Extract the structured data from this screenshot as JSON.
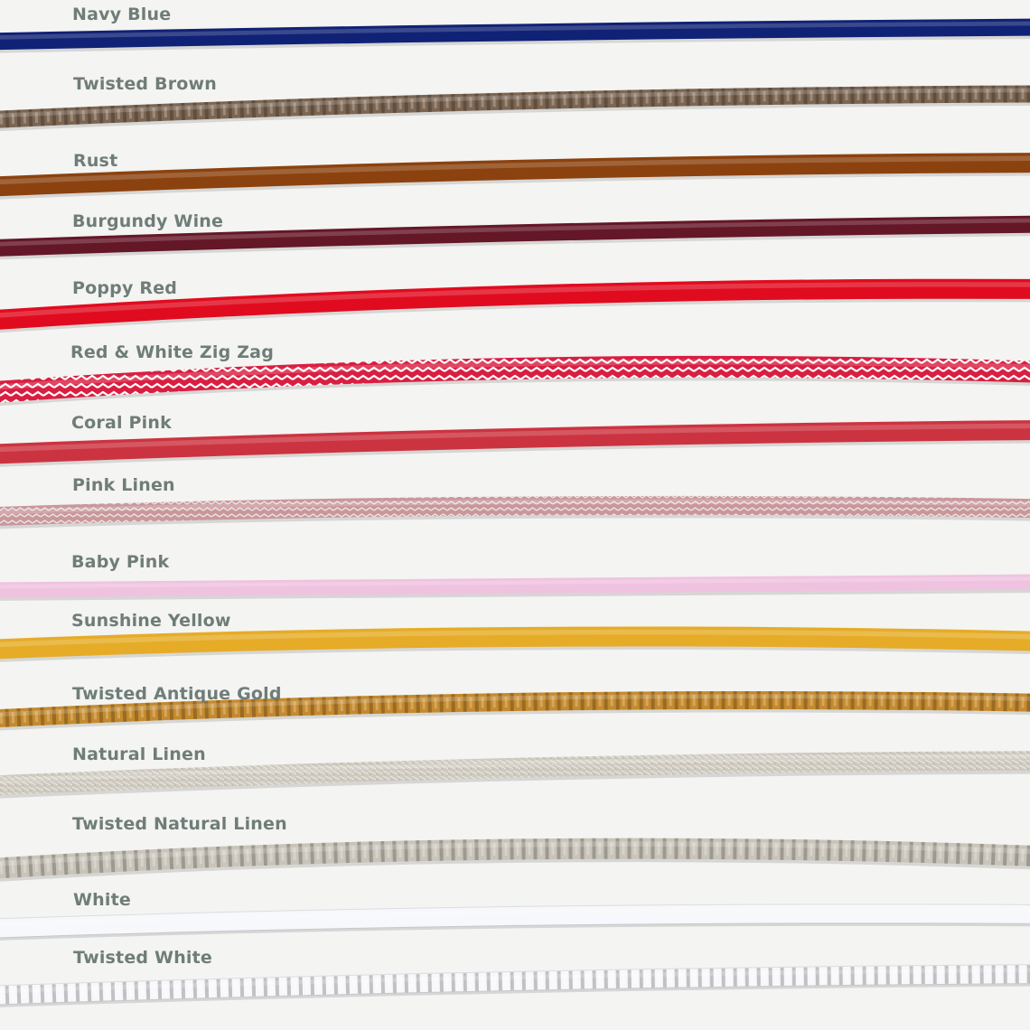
{
  "cables": [
    {
      "label": "Navy Blue",
      "color": "#102275",
      "texture": "solid"
    },
    {
      "label": "Twisted Brown",
      "color": "#7c6652",
      "texture": "twisted"
    },
    {
      "label": "Rust",
      "color": "#8c420f",
      "texture": "solid"
    },
    {
      "label": "Burgundy Wine",
      "color": "#641727",
      "texture": "solid"
    },
    {
      "label": "Poppy Red",
      "color": "#e10b1f",
      "texture": "solid"
    },
    {
      "label": "Red & White Zig Zag",
      "color": "#d91e41",
      "accent": "#ffffff",
      "texture": "zigzag"
    },
    {
      "label": "Coral Pink",
      "color": "#cc3340",
      "texture": "solid"
    },
    {
      "label": "Pink Linen",
      "color": "#c9979b",
      "accent": "#ebe2e1",
      "texture": "linen"
    },
    {
      "label": "Baby Pink",
      "color": "#efc3e0",
      "texture": "solid"
    },
    {
      "label": "Sunshine Yellow",
      "color": "#e6ac27",
      "texture": "solid"
    },
    {
      "label": "Twisted Antique Gold",
      "color": "#c58a2d",
      "texture": "twisted"
    },
    {
      "label": "Natural Linen",
      "color": "#cfcac0",
      "accent": "#eae7e0",
      "texture": "linen"
    },
    {
      "label": "Twisted Natural Linen",
      "color": "#c9c4b9",
      "texture": "twisted"
    },
    {
      "label": "White",
      "color": "#f7f8fb",
      "texture": "solid"
    },
    {
      "label": "Twisted White",
      "color": "#f8f8fb",
      "texture": "twisted"
    }
  ]
}
